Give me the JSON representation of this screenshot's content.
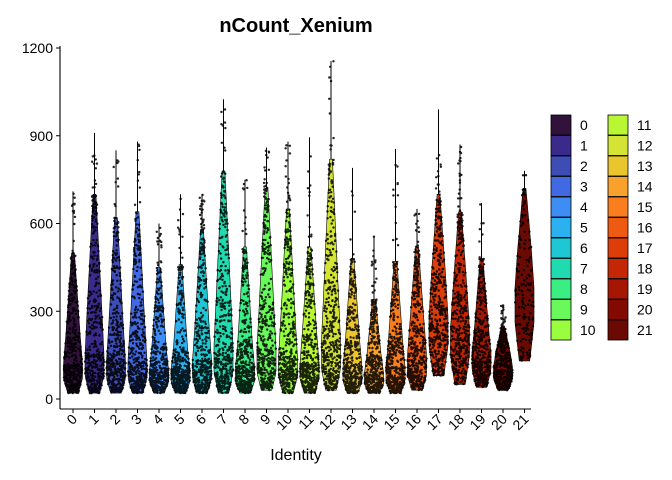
{
  "chart_data": {
    "type": "violin",
    "title": "nCount_Xenium",
    "xlabel": "Identity",
    "ylabel": "",
    "ylim": [
      0,
      1220
    ],
    "yticks": [
      0,
      300,
      600,
      900,
      1200
    ],
    "grid": false,
    "legend_position": "right",
    "legend_columns": 2,
    "categories": [
      "0",
      "1",
      "2",
      "3",
      "4",
      "5",
      "6",
      "7",
      "8",
      "9",
      "10",
      "11",
      "12",
      "13",
      "14",
      "15",
      "16",
      "17",
      "18",
      "19",
      "20",
      "21"
    ],
    "colors": [
      "#30123B",
      "#3A2A8C",
      "#3E4CB5",
      "#4169E1",
      "#3D8DF5",
      "#2BB0F0",
      "#1FC7D4",
      "#20DBB0",
      "#3AEE84",
      "#6AF95A",
      "#98FE3E",
      "#B9F735",
      "#D3E434",
      "#EBC52E",
      "#F9A22B",
      "#FA7E1E",
      "#EE5A12",
      "#DC3D09",
      "#C32703",
      "#A51702",
      "#820A02",
      "#6A0A02"
    ],
    "values": [
      {
        "min": 20,
        "q1": 70,
        "median": 120,
        "q3": 220,
        "upper": 500,
        "max": 710
      },
      {
        "min": 20,
        "q1": 80,
        "median": 150,
        "q3": 320,
        "upper": 700,
        "max": 910
      },
      {
        "min": 20,
        "q1": 70,
        "median": 130,
        "q3": 260,
        "upper": 620,
        "max": 850
      },
      {
        "min": 20,
        "q1": 70,
        "median": 130,
        "q3": 270,
        "upper": 640,
        "max": 880
      },
      {
        "min": 20,
        "q1": 60,
        "median": 100,
        "q3": 180,
        "upper": 450,
        "max": 600
      },
      {
        "min": 20,
        "q1": 60,
        "median": 100,
        "q3": 170,
        "upper": 460,
        "max": 700
      },
      {
        "min": 20,
        "q1": 70,
        "median": 130,
        "q3": 250,
        "upper": 580,
        "max": 700
      },
      {
        "min": 20,
        "q1": 90,
        "median": 180,
        "q3": 360,
        "upper": 780,
        "max": 1025
      },
      {
        "min": 20,
        "q1": 60,
        "median": 110,
        "q3": 200,
        "upper": 520,
        "max": 750
      },
      {
        "min": 30,
        "q1": 90,
        "median": 170,
        "q3": 330,
        "upper": 720,
        "max": 860
      },
      {
        "min": 20,
        "q1": 80,
        "median": 140,
        "q3": 280,
        "upper": 650,
        "max": 880
      },
      {
        "min": 20,
        "q1": 70,
        "median": 120,
        "q3": 230,
        "upper": 520,
        "max": 895
      },
      {
        "min": 30,
        "q1": 100,
        "median": 200,
        "q3": 380,
        "upper": 820,
        "max": 1155
      },
      {
        "min": 20,
        "q1": 60,
        "median": 110,
        "q3": 200,
        "upper": 480,
        "max": 790
      },
      {
        "min": 20,
        "q1": 50,
        "median": 90,
        "q3": 150,
        "upper": 340,
        "max": 555
      },
      {
        "min": 20,
        "q1": 60,
        "median": 110,
        "q3": 200,
        "upper": 470,
        "max": 855
      },
      {
        "min": 30,
        "q1": 80,
        "median": 150,
        "q3": 260,
        "upper": 520,
        "max": 650
      },
      {
        "min": 80,
        "q1": 180,
        "median": 280,
        "q3": 420,
        "upper": 700,
        "max": 990
      },
      {
        "min": 50,
        "q1": 150,
        "median": 240,
        "q3": 370,
        "upper": 640,
        "max": 870
      },
      {
        "min": 40,
        "q1": 100,
        "median": 160,
        "q3": 240,
        "upper": 480,
        "max": 670
      },
      {
        "min": 30,
        "q1": 70,
        "median": 110,
        "q3": 160,
        "upper": 250,
        "max": 320
      },
      {
        "min": 130,
        "q1": 260,
        "median": 380,
        "q3": 500,
        "upper": 720,
        "max": 780
      }
    ]
  }
}
